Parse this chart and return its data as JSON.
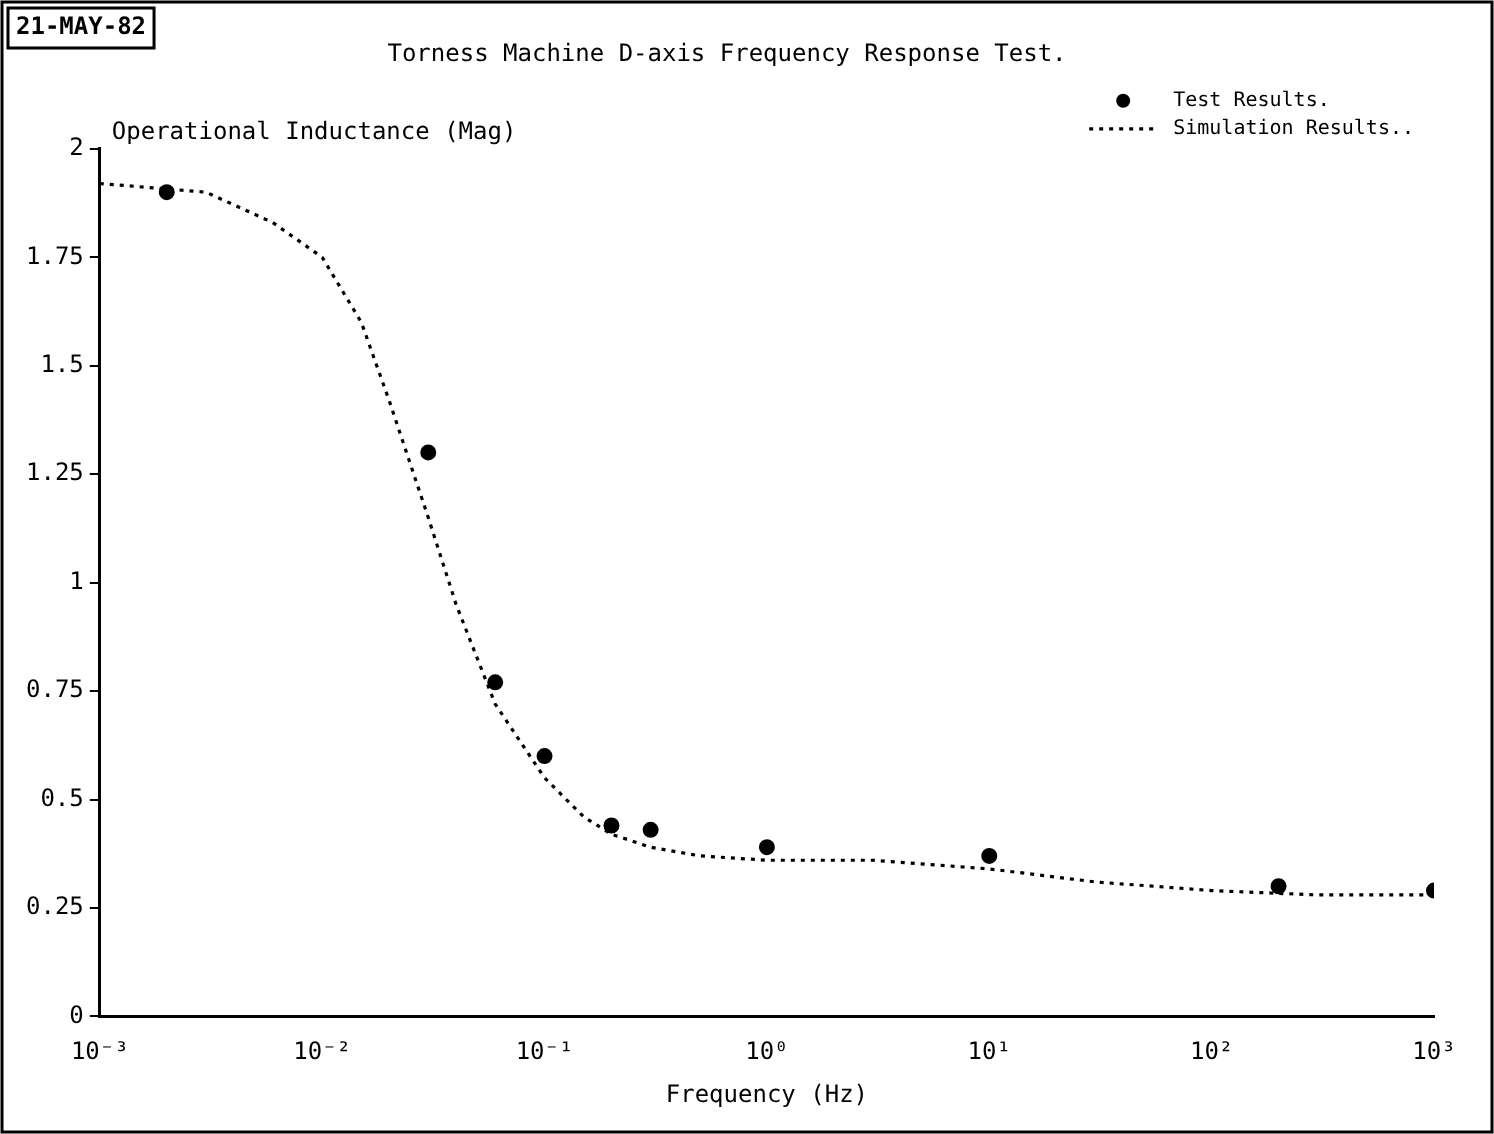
{
  "chart_data": {
    "type": "scatter",
    "title": "Torness Machine D-axis Frequency Response Test.",
    "xlabel": "Frequency (Hz)",
    "ylabel": "Operational Inductance (Mag)",
    "annotations": [
      "21-MAY-82"
    ],
    "log": "x",
    "xlim": [
      0.001,
      1000
    ],
    "xticks": [
      {
        "value": 0.001,
        "label": "10⁻³"
      },
      {
        "value": 0.01,
        "label": "10⁻²"
      },
      {
        "value": 0.1,
        "label": "10⁻¹"
      },
      {
        "value": 1,
        "label": "10⁰"
      },
      {
        "value": 10,
        "label": "10¹"
      },
      {
        "value": 100,
        "label": "10²"
      },
      {
        "value": 1000,
        "label": "10³"
      }
    ],
    "ylim": [
      0,
      2
    ],
    "yticks": [
      0,
      0.25,
      0.5,
      0.75,
      1,
      1.25,
      1.5,
      1.75,
      2
    ],
    "grid": false,
    "legend": "top right",
    "series": [
      {
        "name": "Test Results.",
        "type": "scatter",
        "color": "#000000",
        "marker": "circle",
        "x": [
          0.002,
          0.03,
          0.06,
          0.1,
          0.2,
          0.3,
          1,
          10,
          200,
          1000
        ],
        "values": [
          1.9,
          1.3,
          0.77,
          0.6,
          0.44,
          0.43,
          0.39,
          0.37,
          0.3,
          0.29
        ]
      },
      {
        "name": "Simulation Results..",
        "type": "line",
        "color": "#000000",
        "marker": "none",
        "line_style": "dotted",
        "x": [
          0.001,
          0.003,
          0.006,
          0.01,
          0.015,
          0.02,
          0.03,
          0.04,
          0.06,
          0.1,
          0.15,
          0.2,
          0.3,
          0.5,
          1,
          3,
          10,
          30,
          100,
          300,
          1000
        ],
        "values": [
          1.92,
          1.9,
          1.83,
          1.75,
          1.6,
          1.42,
          1.15,
          0.95,
          0.72,
          0.55,
          0.46,
          0.42,
          0.39,
          0.37,
          0.36,
          0.36,
          0.34,
          0.31,
          0.29,
          0.28,
          0.28
        ]
      }
    ]
  }
}
